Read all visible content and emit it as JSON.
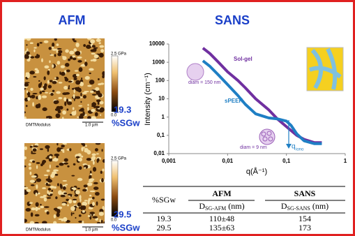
{
  "afm": {
    "title": "AFM",
    "panels": [
      {
        "scale_max": "2.5 GPa",
        "scale_min": "0.0",
        "channel": "DMTModulus",
        "scalebar": "1.0 µm",
        "value": "19.3",
        "unit": "%SGw"
      },
      {
        "scale_max": "2.5 GPa",
        "scale_min": "0.0",
        "channel": "DMTModulus",
        "scalebar": "1.0 µm",
        "value": "29.5",
        "unit": "%SGw"
      }
    ]
  },
  "chart_data": {
    "type": "line",
    "title": "SANS",
    "x_label": "q(Å⁻¹)",
    "y_label": "Intensity (cm⁻¹)",
    "log_x": true,
    "log_y": true,
    "xlim": [
      0.001,
      1
    ],
    "ylim": [
      0.01,
      10000
    ],
    "xticks": [
      {
        "value": 0.001,
        "label": "0,001"
      },
      {
        "value": 0.01,
        "label": "0,01"
      },
      {
        "value": 0.1,
        "label": "0,1"
      },
      1
    ],
    "yticks": [
      {
        "value": 0.01,
        "label": "0,01"
      },
      {
        "value": 0.1,
        "label": "0,1"
      },
      1,
      10,
      100,
      1000,
      10000
    ],
    "series": [
      {
        "name": "Sol-gel",
        "color": "#7030a0",
        "x": [
          0.0038,
          0.005,
          0.007,
          0.01,
          0.015,
          0.02,
          0.03,
          0.05,
          0.07,
          0.1,
          0.15,
          0.2,
          0.3,
          0.4
        ],
        "values": [
          6000,
          3000,
          1000,
          300,
          100,
          40,
          10,
          2.5,
          0.8,
          0.3,
          0.1,
          0.06,
          0.04,
          0.04
        ]
      },
      {
        "name": "sPEEK",
        "color": "#1f7fc4",
        "x": [
          0.0038,
          0.005,
          0.007,
          0.01,
          0.015,
          0.02,
          0.03,
          0.05,
          0.07,
          0.1,
          0.12,
          0.15,
          0.2,
          0.3,
          0.4
        ],
        "values": [
          1200,
          600,
          200,
          60,
          15,
          5,
          1.5,
          0.9,
          0.8,
          0.6,
          0.35,
          0.12,
          0.05,
          0.035,
          0.035
        ]
      }
    ],
    "annotations": [
      "diam = 150 nm",
      "diam = 9 nm",
      "q",
      "iono"
    ]
  },
  "table": {
    "header": [
      "%SGw",
      "AFM",
      "SANS"
    ],
    "subheader": [
      [
        "D",
        "SG-AFM",
        " (nm)"
      ],
      [
        "D",
        "SG-SANS",
        "  (nm)"
      ]
    ],
    "rows": [
      [
        "19.3",
        "110±48",
        "154"
      ],
      [
        "29.5",
        "135±63",
        "173"
      ]
    ]
  }
}
